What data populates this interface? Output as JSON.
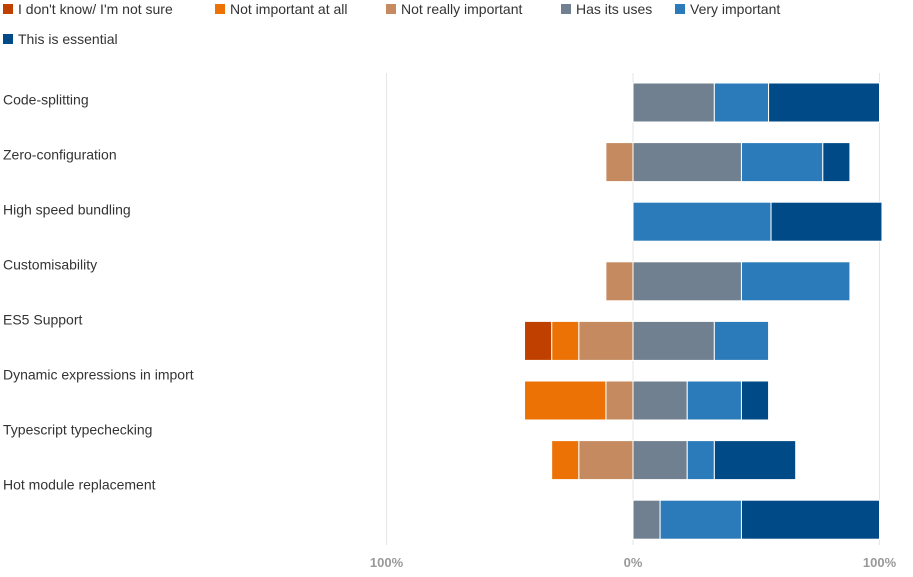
{
  "chart_data": {
    "type": "bar",
    "orientation": "horizontal",
    "stacking": "diverging",
    "title": "",
    "xlabel": "",
    "ylabel": "",
    "xlim": [
      -100,
      100
    ],
    "x_tick_labels": [
      "100%",
      "0%",
      "100%"
    ],
    "grid": true,
    "legend_position": "top-left",
    "categories": [
      "Code-splitting",
      "Zero-configuration",
      "High speed bundling",
      "Customisability",
      "ES5 Support",
      "Dynamic expressions in import",
      "Typescript typechecking",
      "Hot module replacement",
      ""
    ],
    "series": [
      {
        "name": "I don't know/ I'm not sure",
        "side": "negative",
        "color": "#c04000",
        "values": [
          0,
          0,
          0,
          0,
          11,
          0,
          0,
          0,
          0
        ]
      },
      {
        "name": "Not important at all",
        "side": "negative",
        "color": "#ec7206",
        "values": [
          0,
          0,
          0,
          0,
          11,
          33,
          11,
          0,
          0
        ]
      },
      {
        "name": "Not really important",
        "side": "negative",
        "color": "#c58a5f",
        "values": [
          0,
          11,
          0,
          11,
          22,
          11,
          22,
          0,
          0
        ]
      },
      {
        "name": "Has its uses",
        "side": "positive",
        "color": "#708090",
        "values": [
          33,
          44,
          0,
          44,
          33,
          22,
          22,
          11,
          0
        ]
      },
      {
        "name": "Very important",
        "side": "positive",
        "color": "#2b7bba",
        "values": [
          22,
          33,
          56,
          44,
          22,
          22,
          11,
          33,
          0
        ]
      },
      {
        "name": "This is essential",
        "side": "positive",
        "color": "#004b87",
        "values": [
          45,
          11,
          45,
          0,
          0,
          11,
          33,
          56,
          0
        ]
      }
    ]
  }
}
